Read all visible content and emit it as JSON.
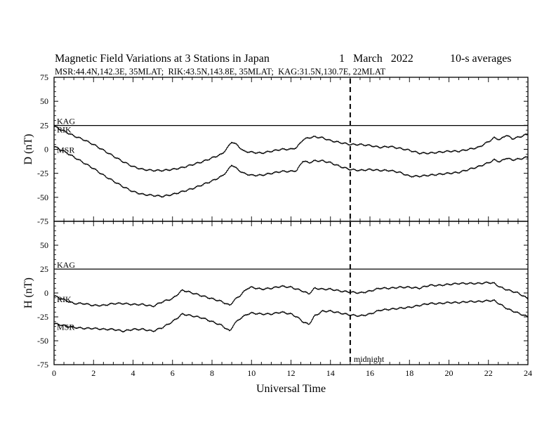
{
  "title": {
    "main": "Magnetic Field Variations at 3 Stations in Japan",
    "date": "1   March   2022",
    "avg": "10-s averages",
    "subtitle": "MSR:44.4N,142.3E, 35MLAT;  RIK:43.5N,143.8E, 35MLAT;  KAG:31.5N,130.7E, 22MLAT"
  },
  "chart_data": [
    {
      "type": "line",
      "panel": "top",
      "ylabel": "D (nT)",
      "xlabel": "",
      "xlim": [
        0,
        24
      ],
      "ylim": [
        -75,
        75
      ],
      "yticks": [
        -75,
        -50,
        -25,
        0,
        25,
        50,
        75
      ],
      "xticks": [
        0,
        2,
        4,
        6,
        8,
        10,
        12,
        14,
        16,
        18,
        20,
        22,
        24
      ],
      "grid": false,
      "series": [
        {
          "name": "KAG",
          "x": [
            0,
            24
          ],
          "y": [
            24.8,
            24.8
          ]
        },
        {
          "name": "RIK",
          "x": [
            0,
            0.5,
            1,
            1.5,
            2,
            2.5,
            3,
            3.5,
            4,
            4.5,
            5,
            5.5,
            6,
            6.5,
            7,
            7.5,
            8,
            8.5,
            8.8,
            9.0,
            9.3,
            9.6,
            10,
            10.5,
            11,
            11.5,
            12,
            12.3,
            12.6,
            12.9,
            13.2,
            13.6,
            14,
            14.5,
            15,
            15.5,
            16,
            16.5,
            17,
            17.5,
            18,
            18.5,
            19,
            19.5,
            20,
            20.5,
            21,
            21.5,
            22,
            22.3,
            22.6,
            22.9,
            23.2,
            23.6,
            24
          ],
          "y": [
            24,
            19,
            14,
            10,
            5,
            -1,
            -7,
            -13,
            -18,
            -21,
            -22,
            -22,
            -21,
            -19,
            -16,
            -13,
            -9,
            -5,
            2,
            8,
            4,
            -2,
            -3,
            -4,
            -2,
            0,
            0,
            2,
            10,
            12,
            13,
            12,
            9,
            7,
            5,
            5,
            4,
            2,
            3,
            1,
            -1,
            -4,
            -4,
            -3,
            -2,
            -2,
            0,
            2,
            8,
            12,
            10,
            15,
            11,
            13,
            16
          ]
        },
        {
          "name": "MSR",
          "x": [
            0,
            0.5,
            1,
            1.5,
            2,
            2.5,
            3,
            3.5,
            4,
            4.5,
            5,
            5.5,
            6,
            6.5,
            7,
            7.5,
            8,
            8.5,
            8.8,
            9.0,
            9.3,
            9.6,
            10,
            10.5,
            11,
            11.5,
            12,
            12.3,
            12.6,
            12.9,
            13.2,
            13.6,
            14,
            14.5,
            15,
            15.5,
            16,
            16.5,
            17,
            17.5,
            18,
            18.5,
            19,
            19.5,
            20,
            20.5,
            21,
            21.5,
            22,
            22.3,
            22.6,
            22.9,
            23.2,
            23.6,
            24
          ],
          "y": [
            3,
            -2,
            -8,
            -14,
            -20,
            -27,
            -33,
            -39,
            -44,
            -47,
            -48,
            -49,
            -47,
            -44,
            -41,
            -37,
            -33,
            -28,
            -22,
            -16,
            -21,
            -25,
            -27,
            -27,
            -25,
            -23,
            -23,
            -22,
            -12,
            -14,
            -12,
            -12,
            -14,
            -18,
            -21,
            -22,
            -21,
            -22,
            -22,
            -24,
            -28,
            -28,
            -27,
            -26,
            -25,
            -24,
            -21,
            -18,
            -14,
            -11,
            -13,
            -9,
            -11,
            -10,
            -8
          ]
        }
      ]
    },
    {
      "type": "line",
      "panel": "bottom",
      "ylabel": "H (nT)",
      "xlabel": "Universal Time",
      "xlim": [
        0,
        24
      ],
      "ylim": [
        -75,
        75
      ],
      "yticks": [
        -75,
        -50,
        -25,
        0,
        25,
        50,
        75
      ],
      "xticks": [
        0,
        2,
        4,
        6,
        8,
        10,
        12,
        14,
        16,
        18,
        20,
        22,
        24
      ],
      "grid": false,
      "series": [
        {
          "name": "KAG",
          "x": [
            0,
            24
          ],
          "y": [
            25,
            25
          ]
        },
        {
          "name": "RIK",
          "x": [
            0,
            0.5,
            1,
            1.5,
            2,
            2.5,
            3,
            3.5,
            4,
            4.5,
            5,
            5.5,
            6,
            6.5,
            7,
            7.5,
            8,
            8.5,
            8.9,
            9.1,
            9.4,
            9.8,
            10,
            10.5,
            11,
            11.5,
            12,
            12.3,
            12.6,
            12.9,
            13.2,
            13.6,
            14,
            14.5,
            15,
            15.5,
            16,
            16.5,
            17,
            17.5,
            18,
            18.5,
            19,
            19.5,
            20,
            20.5,
            21,
            21.5,
            22,
            22.3,
            22.6,
            23,
            23.5,
            24
          ],
          "y": [
            -3,
            -7,
            -11,
            -11,
            -13,
            -13,
            -11,
            -11,
            -12,
            -12,
            -14,
            -9,
            -6,
            3,
            0,
            -3,
            -6,
            -9,
            -13,
            -8,
            -3,
            5,
            6,
            4,
            5,
            7,
            6,
            4,
            2,
            -1,
            5,
            4,
            4,
            2,
            1,
            0,
            2,
            5,
            5,
            6,
            6,
            5,
            8,
            8,
            9,
            10,
            10,
            10,
            11,
            10,
            6,
            3,
            0,
            -6
          ]
        },
        {
          "name": "MSR",
          "x": [
            0,
            0.5,
            1,
            1.5,
            2,
            2.5,
            3,
            3.5,
            4,
            4.5,
            5,
            5.5,
            6,
            6.5,
            7,
            7.5,
            8,
            8.5,
            8.9,
            9.1,
            9.4,
            9.8,
            10,
            10.5,
            11,
            11.5,
            12,
            12.3,
            12.6,
            12.9,
            13.2,
            13.6,
            14,
            14.5,
            15,
            15.5,
            16,
            16.5,
            17,
            17.5,
            18,
            18.5,
            19,
            19.5,
            20,
            20.5,
            21,
            21.5,
            22,
            22.3,
            22.6,
            23,
            23.5,
            24
          ],
          "y": [
            -32,
            -34,
            -36,
            -37,
            -37,
            -38,
            -38,
            -40,
            -38,
            -38,
            -40,
            -36,
            -30,
            -22,
            -24,
            -26,
            -30,
            -34,
            -40,
            -33,
            -27,
            -22,
            -21,
            -22,
            -22,
            -20,
            -22,
            -25,
            -30,
            -33,
            -24,
            -19,
            -19,
            -21,
            -23,
            -24,
            -22,
            -18,
            -17,
            -16,
            -15,
            -13,
            -11,
            -11,
            -10,
            -10,
            -9,
            -9,
            -8,
            -8,
            -12,
            -17,
            -21,
            -25
          ]
        }
      ]
    }
  ],
  "annotations": {
    "midnight_label": "midnight",
    "midnight_ut": 15
  },
  "colors": {
    "line": "#000000",
    "background": "#ffffff"
  }
}
